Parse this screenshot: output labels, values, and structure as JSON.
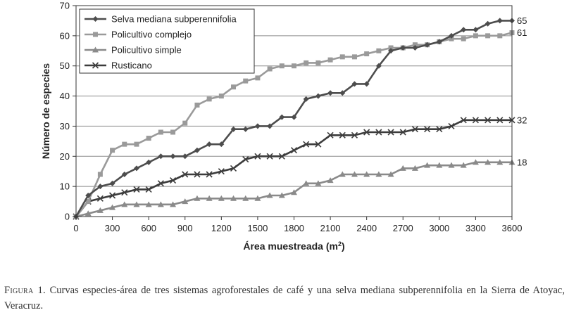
{
  "chart_data": {
    "type": "line",
    "xlabel": "Área muestreada (m",
    "xlabel_sup": "2",
    "xlabel_close": ")",
    "ylabel": "Número de especies",
    "xlim": [
      0,
      3600
    ],
    "ylim": [
      0,
      70
    ],
    "xticks": [
      0,
      300,
      600,
      900,
      1200,
      1500,
      1800,
      2100,
      2400,
      2700,
      3000,
      3300,
      3600
    ],
    "yticks": [
      0,
      10,
      20,
      30,
      40,
      50,
      60,
      70
    ],
    "grid": "horizontal",
    "legend_position": "top-left",
    "x": [
      0,
      100,
      200,
      300,
      400,
      500,
      600,
      700,
      800,
      900,
      1000,
      1100,
      1200,
      1300,
      1400,
      1500,
      1600,
      1700,
      1800,
      1900,
      2000,
      2100,
      2200,
      2300,
      2400,
      2500,
      2600,
      2700,
      2800,
      2900,
      3000,
      3100,
      3200,
      3300,
      3400,
      3500,
      3600
    ],
    "series": [
      {
        "name": "Selva mediana subperennifolia",
        "color": "#4d4d4d",
        "marker": "diamond",
        "end_label": "65",
        "values": [
          0,
          7,
          10,
          11,
          14,
          16,
          18,
          20,
          20,
          20,
          22,
          24,
          24,
          29,
          29,
          30,
          30,
          33,
          33,
          39,
          40,
          41,
          41,
          44,
          44,
          50,
          55,
          56,
          56,
          57,
          58,
          60,
          62,
          62,
          64,
          65,
          65
        ]
      },
      {
        "name": "Policultivo complejo",
        "color": "#9a9a9a",
        "marker": "square",
        "end_label": "61",
        "values": [
          0,
          5,
          14,
          22,
          24,
          24,
          26,
          28,
          28,
          31,
          37,
          39,
          40,
          43,
          45,
          46,
          49,
          50,
          50,
          51,
          51,
          52,
          53,
          53,
          54,
          55,
          56,
          56,
          57,
          57,
          58,
          59,
          59,
          60,
          60,
          60,
          61
        ]
      },
      {
        "name": "Policultivo simple",
        "color": "#8a8a8a",
        "marker": "triangle",
        "end_label": "18",
        "values": [
          0,
          1,
          2,
          3,
          4,
          4,
          4,
          4,
          4,
          5,
          6,
          6,
          6,
          6,
          6,
          6,
          7,
          7,
          8,
          11,
          11,
          12,
          14,
          14,
          14,
          14,
          14,
          16,
          16,
          17,
          17,
          17,
          17,
          18,
          18,
          18,
          18
        ]
      },
      {
        "name": "Rusticano",
        "color": "#3c3c3c",
        "marker": "x",
        "end_label": "32",
        "values": [
          0,
          5,
          6,
          7,
          8,
          9,
          9,
          11,
          12,
          14,
          14,
          14,
          15,
          16,
          19,
          20,
          20,
          20,
          22,
          24,
          24,
          27,
          27,
          27,
          28,
          28,
          28,
          28,
          29,
          29,
          29,
          30,
          32,
          32,
          32,
          32,
          32
        ]
      }
    ]
  },
  "caption": {
    "label": "Figura 1.",
    "text": "Curvas especies-área de tres sistemas agroforestales de café y una selva mediana subperennifolia en la Sierra de Atoyac, Veracruz."
  }
}
